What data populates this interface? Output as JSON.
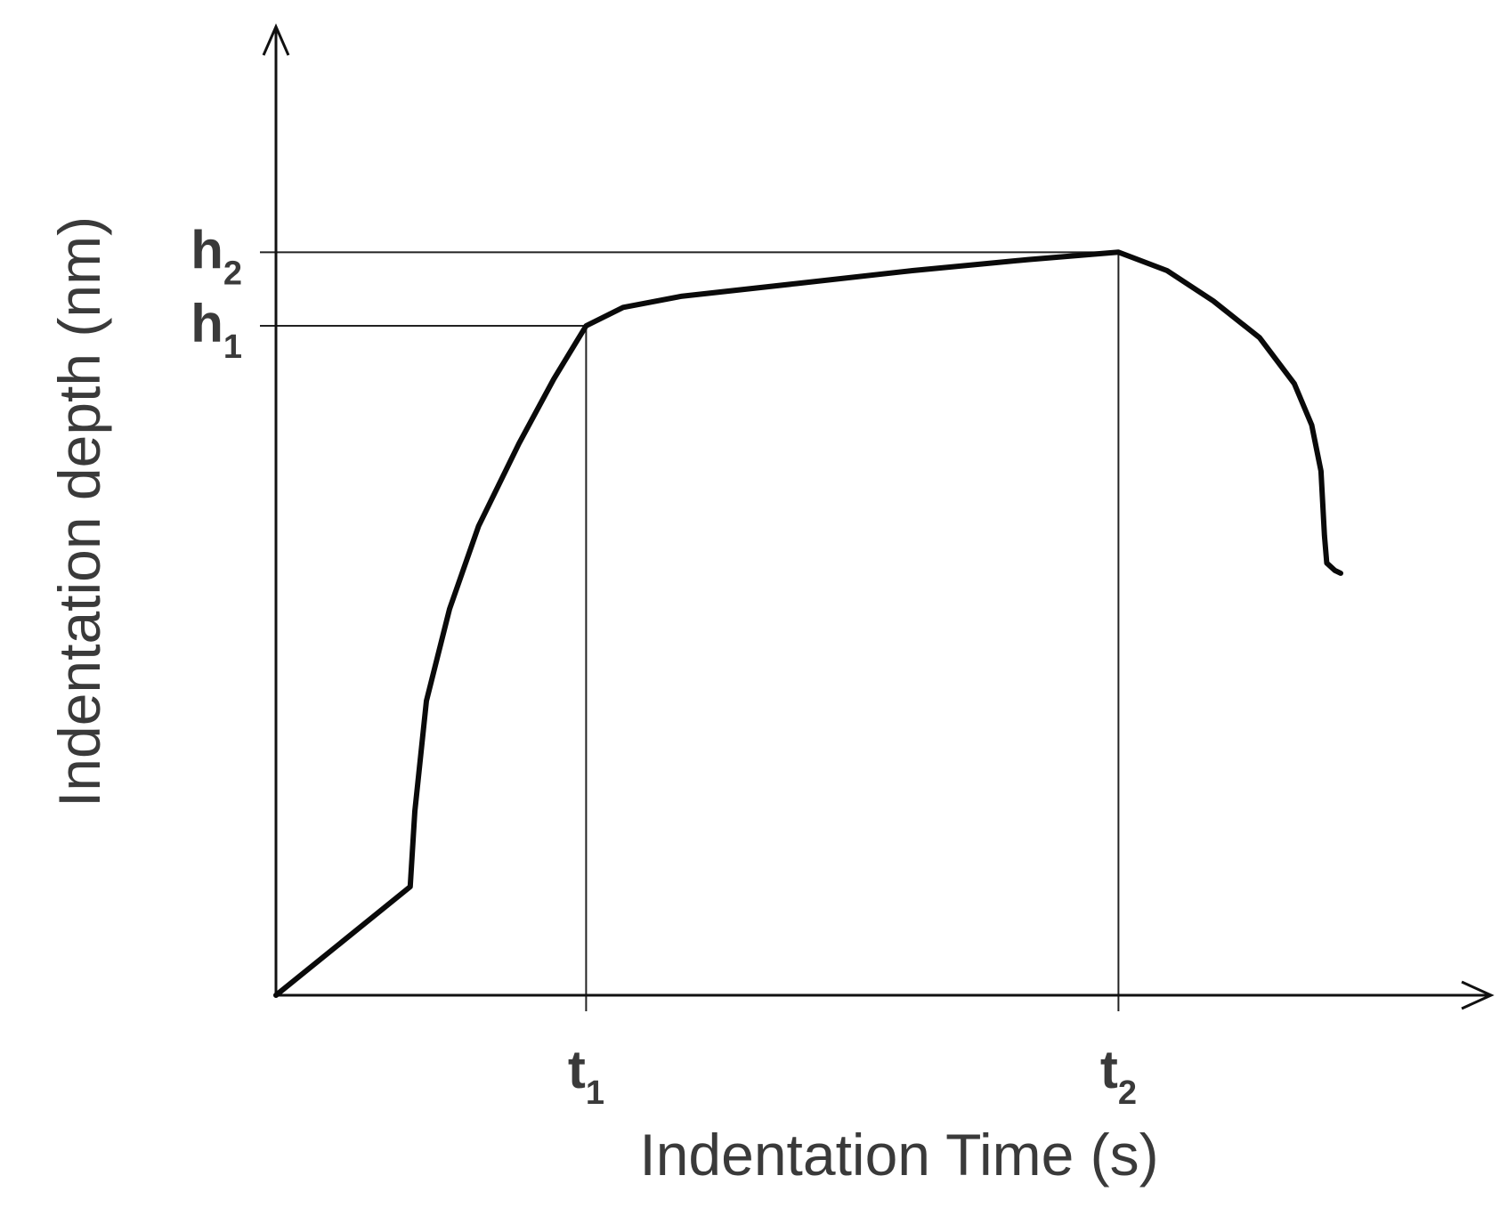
{
  "chart_data": {
    "type": "line",
    "xlabel": "Indentation Time (s)",
    "ylabel": "Indentation depth (nm)",
    "x_ticks": [
      {
        "main": "t",
        "sub": "1"
      },
      {
        "main": "t",
        "sub": "2"
      }
    ],
    "y_ticks": [
      {
        "main": "h",
        "sub": "2"
      },
      {
        "main": "h",
        "sub": "1"
      }
    ],
    "series": [
      {
        "points": [
          [
            0,
            0
          ],
          [
            0.116,
            0.118
          ],
          [
            0.12,
            0.2
          ],
          [
            0.13,
            0.32
          ],
          [
            0.15,
            0.42
          ],
          [
            0.175,
            0.51
          ],
          [
            0.21,
            0.6
          ],
          [
            0.24,
            0.67
          ],
          [
            0.268,
            0.728
          ],
          [
            0.3,
            0.748
          ],
          [
            0.35,
            0.76
          ],
          [
            0.45,
            0.774
          ],
          [
            0.55,
            0.788
          ],
          [
            0.65,
            0.8
          ],
          [
            0.728,
            0.808
          ],
          [
            0.77,
            0.788
          ],
          [
            0.81,
            0.755
          ],
          [
            0.85,
            0.715
          ],
          [
            0.88,
            0.665
          ],
          [
            0.895,
            0.62
          ],
          [
            0.903,
            0.57
          ],
          [
            0.906,
            0.5
          ],
          [
            0.908,
            0.47
          ],
          [
            0.915,
            0.462
          ],
          [
            0.92,
            0.459
          ]
        ]
      }
    ],
    "reference_lines": {
      "h1_y": 0.728,
      "h2_y": 0.808,
      "t1_x": 0.268,
      "t2_x": 0.728
    },
    "grid": false,
    "legend": "none"
  }
}
